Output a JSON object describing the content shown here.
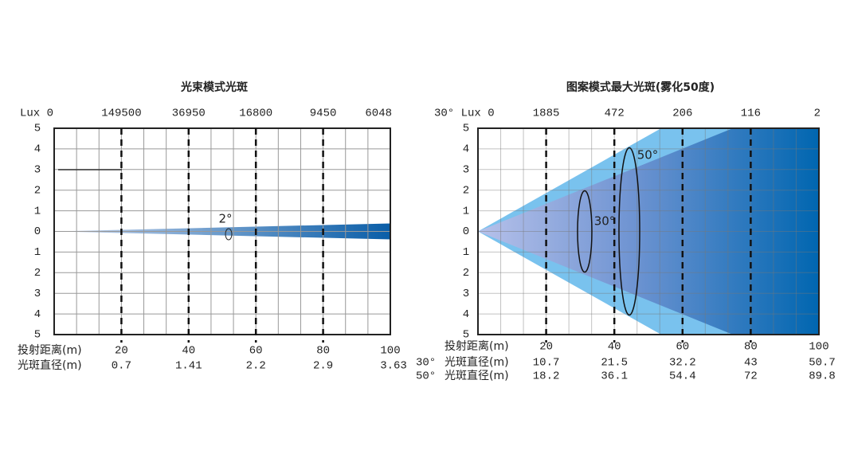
{
  "panels": [
    {
      "title": "光束模式光斑",
      "lux_header": "Lux 0",
      "lux": [
        149500,
        36950,
        16800,
        9450,
        6048
      ],
      "y_labels": [
        5,
        4,
        3,
        2,
        1,
        0,
        1,
        2,
        3,
        4,
        5
      ],
      "beam_angles": [
        "2°"
      ],
      "distance_label": "投射距离(m)",
      "distances": [
        20,
        40,
        60,
        80,
        100
      ],
      "diameter_rows": [
        {
          "angle": null,
          "label": "光斑直径(m)",
          "values": [
            0.7,
            1.41,
            2.2,
            2.9,
            3.63
          ]
        }
      ]
    },
    {
      "title": "图案模式最大光斑(雾化50度)",
      "lux_header": "30° Lux 0",
      "lux": [
        1885,
        472,
        206,
        116,
        2
      ],
      "y_labels": [
        5,
        4,
        3,
        2,
        1,
        0,
        1,
        2,
        3,
        4,
        5
      ],
      "beam_angles": [
        "30°",
        "50°"
      ],
      "distance_label": "投射距离(m)",
      "distances": [
        20,
        40,
        60,
        80,
        100
      ],
      "diameter_rows": [
        {
          "angle": "30°",
          "label": "光斑直径(m)",
          "values": [
            10.7,
            21.5,
            32.2,
            43,
            50.7
          ]
        },
        {
          "angle": "50°",
          "label": "光斑直径(m)",
          "values": [
            18.2,
            36.1,
            54.4,
            72,
            89.8
          ]
        }
      ]
    }
  ]
}
